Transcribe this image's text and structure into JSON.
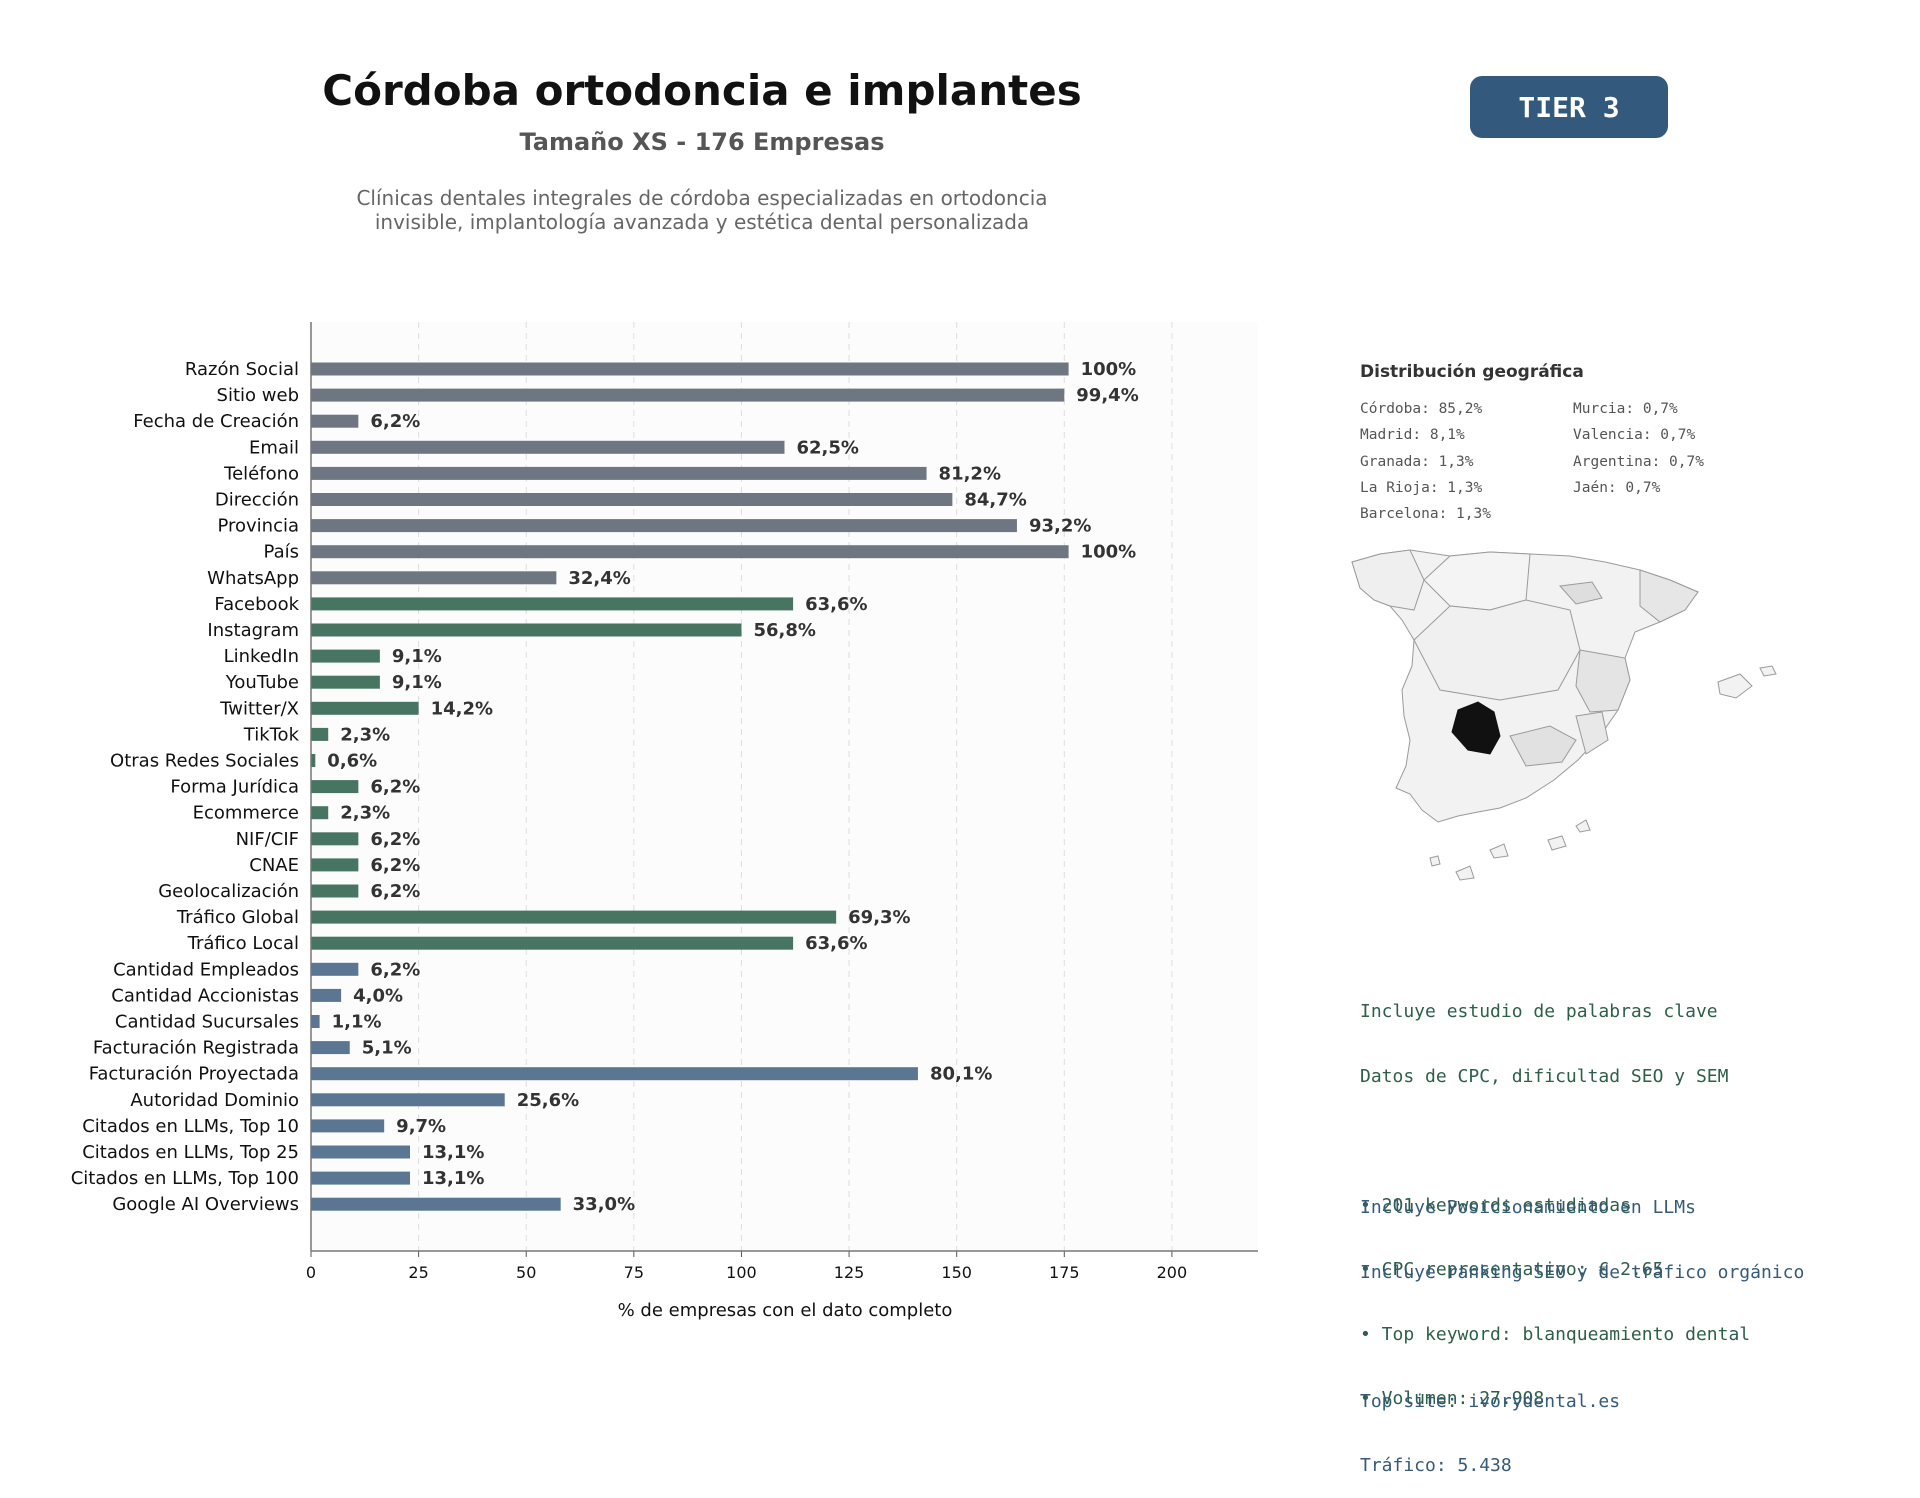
{
  "header": {
    "title": "Córdoba ortodoncia e implantes",
    "subtitle": "Tamaño XS - 176 Empresas",
    "description_line1": "Clínicas dentales integrales de córdoba especializadas en ortodoncia",
    "description_line2": "invisible, implantología avanzada y estética dental personalizada",
    "tier": "TIER 3"
  },
  "colors": {
    "gray": "#6e7781",
    "green": "#477562",
    "blue": "#5a7693",
    "tier": "#33597d",
    "map_highlight": "#111111"
  },
  "chart_data": {
    "type": "bar",
    "orientation": "horizontal",
    "xlabel": "% de empresas con el dato completo",
    "xlim": [
      0,
      220
    ],
    "xticks": [
      0,
      25,
      50,
      75,
      100,
      125,
      150,
      175,
      200
    ],
    "grid": "vertical dashed",
    "categories": [
      "Razón Social",
      "Sitio web",
      "Fecha de Creación",
      "Email",
      "Teléfono",
      "Dirección",
      "Provincia",
      "País",
      "WhatsApp",
      "Facebook",
      "Instagram",
      "LinkedIn",
      "YouTube",
      "Twitter/X",
      "TikTok",
      "Otras Redes Sociales",
      "Forma Jurídica",
      "Ecommerce",
      "NIF/CIF",
      "CNAE",
      "Geolocalización",
      "Tráfico Global",
      "Tráfico Local",
      "Cantidad Empleados",
      "Cantidad Accionistas",
      "Cantidad Sucursales",
      "Facturación Registrada",
      "Facturación Proyectada",
      "Autoridad Dominio",
      "Citados en LLMs, Top 10",
      "Citados en LLMs, Top 25",
      "Citados en LLMs, Top 100",
      "Google AI Overviews"
    ],
    "values": [
      176,
      175,
      11,
      110,
      143,
      149,
      164,
      176,
      57,
      112,
      100,
      16,
      16,
      25,
      4,
      1,
      11,
      4,
      11,
      11,
      11,
      122,
      112,
      11,
      7,
      2,
      9,
      141,
      45,
      17,
      23,
      23,
      58
    ],
    "labels": [
      "100%",
      "99,4%",
      "6,2%",
      "62,5%",
      "81,2%",
      "84,7%",
      "93,2%",
      "100%",
      "32,4%",
      "63,6%",
      "56,8%",
      "9,1%",
      "9,1%",
      "14,2%",
      "2,3%",
      "0,6%",
      "6,2%",
      "2,3%",
      "6,2%",
      "6,2%",
      "6,2%",
      "69,3%",
      "63,6%",
      "6,2%",
      "4,0%",
      "1,1%",
      "5,1%",
      "80,1%",
      "25,6%",
      "9,7%",
      "13,1%",
      "13,1%",
      "33,0%"
    ],
    "groups": [
      "gray",
      "gray",
      "gray",
      "gray",
      "gray",
      "gray",
      "gray",
      "gray",
      "gray",
      "green",
      "green",
      "green",
      "green",
      "green",
      "green",
      "green",
      "green",
      "green",
      "green",
      "green",
      "green",
      "green",
      "green",
      "blue",
      "blue",
      "blue",
      "blue",
      "blue",
      "blue",
      "blue",
      "blue",
      "blue",
      "blue"
    ]
  },
  "geo": {
    "title": "Distribución geográfica",
    "left": [
      "Córdoba: 85,2%",
      "Madrid: 8,1%",
      "Granada: 1,3%",
      "La Rioja: 1,3%",
      "Barcelona: 1,3%"
    ],
    "right": [
      "Murcia: 0,7%",
      "Valencia: 0,7%",
      "Argentina: 0,7%",
      "Jaén: 0,7%"
    ]
  },
  "keywords": {
    "line1": "Incluye estudio de palabras clave",
    "line2": "Datos de CPC, dificultad SEO y SEM",
    "bullets": [
      "• 201 keywords estudiadas",
      "• CPC representativo: € 2.65",
      "• Top keyword: blanqueamiento dental",
      "• Volumen: 27.908"
    ]
  },
  "llm": {
    "line1": "Incluye Posicionamiento en LLMs",
    "line2": "Incluye ranking SEO y de tráfico orgánico",
    "top_site": "Top site: ivorydental.es",
    "traffic": "Tráfico: 5.438"
  }
}
